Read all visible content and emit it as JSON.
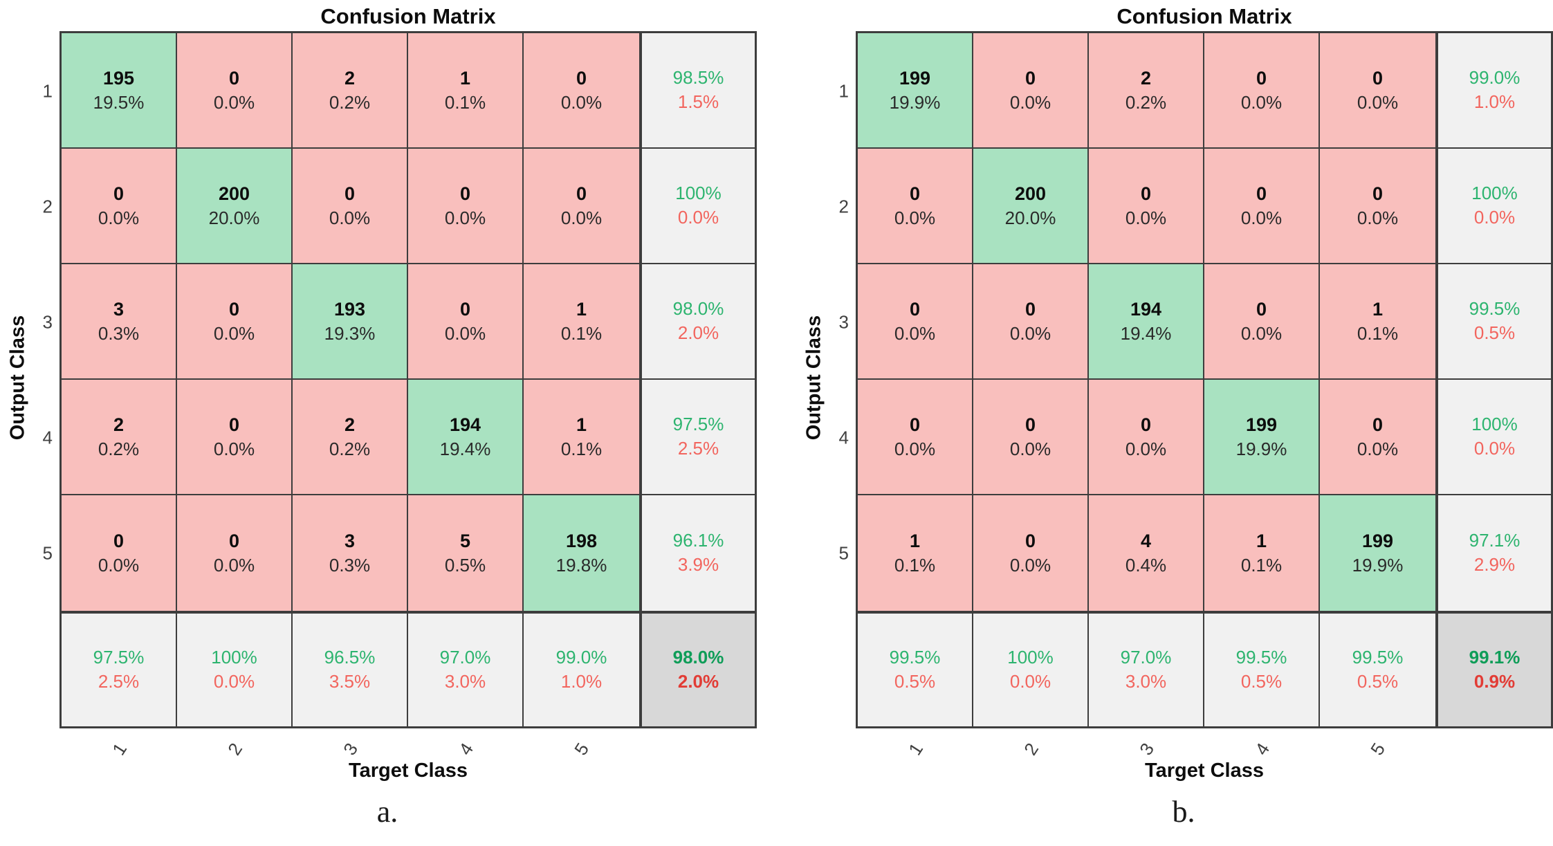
{
  "colors": {
    "diagonal_cell": "#a9e2c1",
    "offdiagonal_cell": "#f9bfbd",
    "summary_cell": "#f1f1f1",
    "total_cell": "#d8d8d8",
    "summary_green": "#2db46f",
    "summary_red": "#f2655e",
    "total_green": "#0f9d58",
    "total_red": "#e23c35",
    "grid_line": "#3d3d3d"
  },
  "figure": {
    "panels": [
      {
        "caption": "a.",
        "title": "Confusion Matrix",
        "xlabel": "Target Class",
        "ylabel": "Output Class",
        "row_ticks": [
          "1",
          "2",
          "3",
          "4",
          "5"
        ],
        "col_ticks": [
          "1",
          "2",
          "3",
          "4",
          "5"
        ],
        "matrix": [
          [
            {
              "count": "195",
              "pct": "19.5%"
            },
            {
              "count": "0",
              "pct": "0.0%"
            },
            {
              "count": "2",
              "pct": "0.2%"
            },
            {
              "count": "1",
              "pct": "0.1%"
            },
            {
              "count": "0",
              "pct": "0.0%"
            }
          ],
          [
            {
              "count": "0",
              "pct": "0.0%"
            },
            {
              "count": "200",
              "pct": "20.0%"
            },
            {
              "count": "0",
              "pct": "0.0%"
            },
            {
              "count": "0",
              "pct": "0.0%"
            },
            {
              "count": "0",
              "pct": "0.0%"
            }
          ],
          [
            {
              "count": "3",
              "pct": "0.3%"
            },
            {
              "count": "0",
              "pct": "0.0%"
            },
            {
              "count": "193",
              "pct": "19.3%"
            },
            {
              "count": "0",
              "pct": "0.0%"
            },
            {
              "count": "1",
              "pct": "0.1%"
            }
          ],
          [
            {
              "count": "2",
              "pct": "0.2%"
            },
            {
              "count": "0",
              "pct": "0.0%"
            },
            {
              "count": "2",
              "pct": "0.2%"
            },
            {
              "count": "194",
              "pct": "19.4%"
            },
            {
              "count": "1",
              "pct": "0.1%"
            }
          ],
          [
            {
              "count": "0",
              "pct": "0.0%"
            },
            {
              "count": "0",
              "pct": "0.0%"
            },
            {
              "count": "3",
              "pct": "0.3%"
            },
            {
              "count": "5",
              "pct": "0.5%"
            },
            {
              "count": "198",
              "pct": "19.8%"
            }
          ]
        ],
        "row_summary": [
          {
            "green": "98.5%",
            "red": "1.5%"
          },
          {
            "green": "100%",
            "red": "0.0%"
          },
          {
            "green": "98.0%",
            "red": "2.0%"
          },
          {
            "green": "97.5%",
            "red": "2.5%"
          },
          {
            "green": "96.1%",
            "red": "3.9%"
          }
        ],
        "col_summary": [
          {
            "green": "97.5%",
            "red": "2.5%"
          },
          {
            "green": "100%",
            "red": "0.0%"
          },
          {
            "green": "96.5%",
            "red": "3.5%"
          },
          {
            "green": "97.0%",
            "red": "3.0%"
          },
          {
            "green": "99.0%",
            "red": "1.0%"
          }
        ],
        "total": {
          "green": "98.0%",
          "red": "2.0%"
        }
      },
      {
        "caption": "b.",
        "title": "Confusion Matrix",
        "xlabel": "Target Class",
        "ylabel": "Output Class",
        "row_ticks": [
          "1",
          "2",
          "3",
          "4",
          "5"
        ],
        "col_ticks": [
          "1",
          "2",
          "3",
          "4",
          "5"
        ],
        "matrix": [
          [
            {
              "count": "199",
              "pct": "19.9%"
            },
            {
              "count": "0",
              "pct": "0.0%"
            },
            {
              "count": "2",
              "pct": "0.2%"
            },
            {
              "count": "0",
              "pct": "0.0%"
            },
            {
              "count": "0",
              "pct": "0.0%"
            }
          ],
          [
            {
              "count": "0",
              "pct": "0.0%"
            },
            {
              "count": "200",
              "pct": "20.0%"
            },
            {
              "count": "0",
              "pct": "0.0%"
            },
            {
              "count": "0",
              "pct": "0.0%"
            },
            {
              "count": "0",
              "pct": "0.0%"
            }
          ],
          [
            {
              "count": "0",
              "pct": "0.0%"
            },
            {
              "count": "0",
              "pct": "0.0%"
            },
            {
              "count": "194",
              "pct": "19.4%"
            },
            {
              "count": "0",
              "pct": "0.0%"
            },
            {
              "count": "1",
              "pct": "0.1%"
            }
          ],
          [
            {
              "count": "0",
              "pct": "0.0%"
            },
            {
              "count": "0",
              "pct": "0.0%"
            },
            {
              "count": "0",
              "pct": "0.0%"
            },
            {
              "count": "199",
              "pct": "19.9%"
            },
            {
              "count": "0",
              "pct": "0.0%"
            }
          ],
          [
            {
              "count": "1",
              "pct": "0.1%"
            },
            {
              "count": "0",
              "pct": "0.0%"
            },
            {
              "count": "4",
              "pct": "0.4%"
            },
            {
              "count": "1",
              "pct": "0.1%"
            },
            {
              "count": "199",
              "pct": "19.9%"
            }
          ]
        ],
        "row_summary": [
          {
            "green": "99.0%",
            "red": "1.0%"
          },
          {
            "green": "100%",
            "red": "0.0%"
          },
          {
            "green": "99.5%",
            "red": "0.5%"
          },
          {
            "green": "100%",
            "red": "0.0%"
          },
          {
            "green": "97.1%",
            "red": "2.9%"
          }
        ],
        "col_summary": [
          {
            "green": "99.5%",
            "red": "0.5%"
          },
          {
            "green": "100%",
            "red": "0.0%"
          },
          {
            "green": "97.0%",
            "red": "3.0%"
          },
          {
            "green": "99.5%",
            "red": "0.5%"
          },
          {
            "green": "99.5%",
            "red": "0.5%"
          }
        ],
        "total": {
          "green": "99.1%",
          "red": "0.9%"
        }
      }
    ]
  },
  "chart_data": [
    {
      "type": "heatmap",
      "title": "Confusion Matrix",
      "xlabel": "Target Class",
      "ylabel": "Output Class",
      "caption": "a.",
      "classes": [
        1,
        2,
        3,
        4,
        5
      ],
      "matrix_counts": [
        [
          195,
          0,
          2,
          1,
          0
        ],
        [
          0,
          200,
          0,
          0,
          0
        ],
        [
          3,
          0,
          193,
          0,
          1
        ],
        [
          2,
          0,
          2,
          194,
          1
        ],
        [
          0,
          0,
          3,
          5,
          198
        ]
      ],
      "matrix_pct": [
        [
          19.5,
          0.0,
          0.2,
          0.1,
          0.0
        ],
        [
          0.0,
          20.0,
          0.0,
          0.0,
          0.0
        ],
        [
          0.3,
          0.0,
          19.3,
          0.0,
          0.1
        ],
        [
          0.2,
          0.0,
          0.2,
          19.4,
          0.1
        ],
        [
          0.0,
          0.0,
          0.3,
          0.5,
          19.8
        ]
      ],
      "row_summary_green_pct": [
        98.5,
        100,
        98.0,
        97.5,
        96.1
      ],
      "row_summary_red_pct": [
        1.5,
        0.0,
        2.0,
        2.5,
        3.9
      ],
      "col_summary_green_pct": [
        97.5,
        100,
        96.5,
        97.0,
        99.0
      ],
      "col_summary_red_pct": [
        2.5,
        0.0,
        3.5,
        3.0,
        1.0
      ],
      "overall_accuracy_pct": 98.0,
      "overall_error_pct": 2.0
    },
    {
      "type": "heatmap",
      "title": "Confusion Matrix",
      "xlabel": "Target Class",
      "ylabel": "Output Class",
      "caption": "b.",
      "classes": [
        1,
        2,
        3,
        4,
        5
      ],
      "matrix_counts": [
        [
          199,
          0,
          2,
          0,
          0
        ],
        [
          0,
          200,
          0,
          0,
          0
        ],
        [
          0,
          0,
          194,
          0,
          1
        ],
        [
          0,
          0,
          0,
          199,
          0
        ],
        [
          1,
          0,
          4,
          1,
          199
        ]
      ],
      "matrix_pct": [
        [
          19.9,
          0.0,
          0.2,
          0.0,
          0.0
        ],
        [
          0.0,
          20.0,
          0.0,
          0.0,
          0.0
        ],
        [
          0.0,
          0.0,
          19.4,
          0.0,
          0.1
        ],
        [
          0.0,
          0.0,
          0.0,
          19.9,
          0.0
        ],
        [
          0.1,
          0.0,
          0.4,
          0.1,
          19.9
        ]
      ],
      "row_summary_green_pct": [
        99.0,
        100,
        99.5,
        100,
        97.1
      ],
      "row_summary_red_pct": [
        1.0,
        0.0,
        0.5,
        0.0,
        2.9
      ],
      "col_summary_green_pct": [
        99.5,
        100,
        97.0,
        99.5,
        99.5
      ],
      "col_summary_red_pct": [
        0.5,
        0.0,
        3.0,
        0.5,
        0.5
      ],
      "overall_accuracy_pct": 99.1,
      "overall_error_pct": 0.9
    }
  ]
}
